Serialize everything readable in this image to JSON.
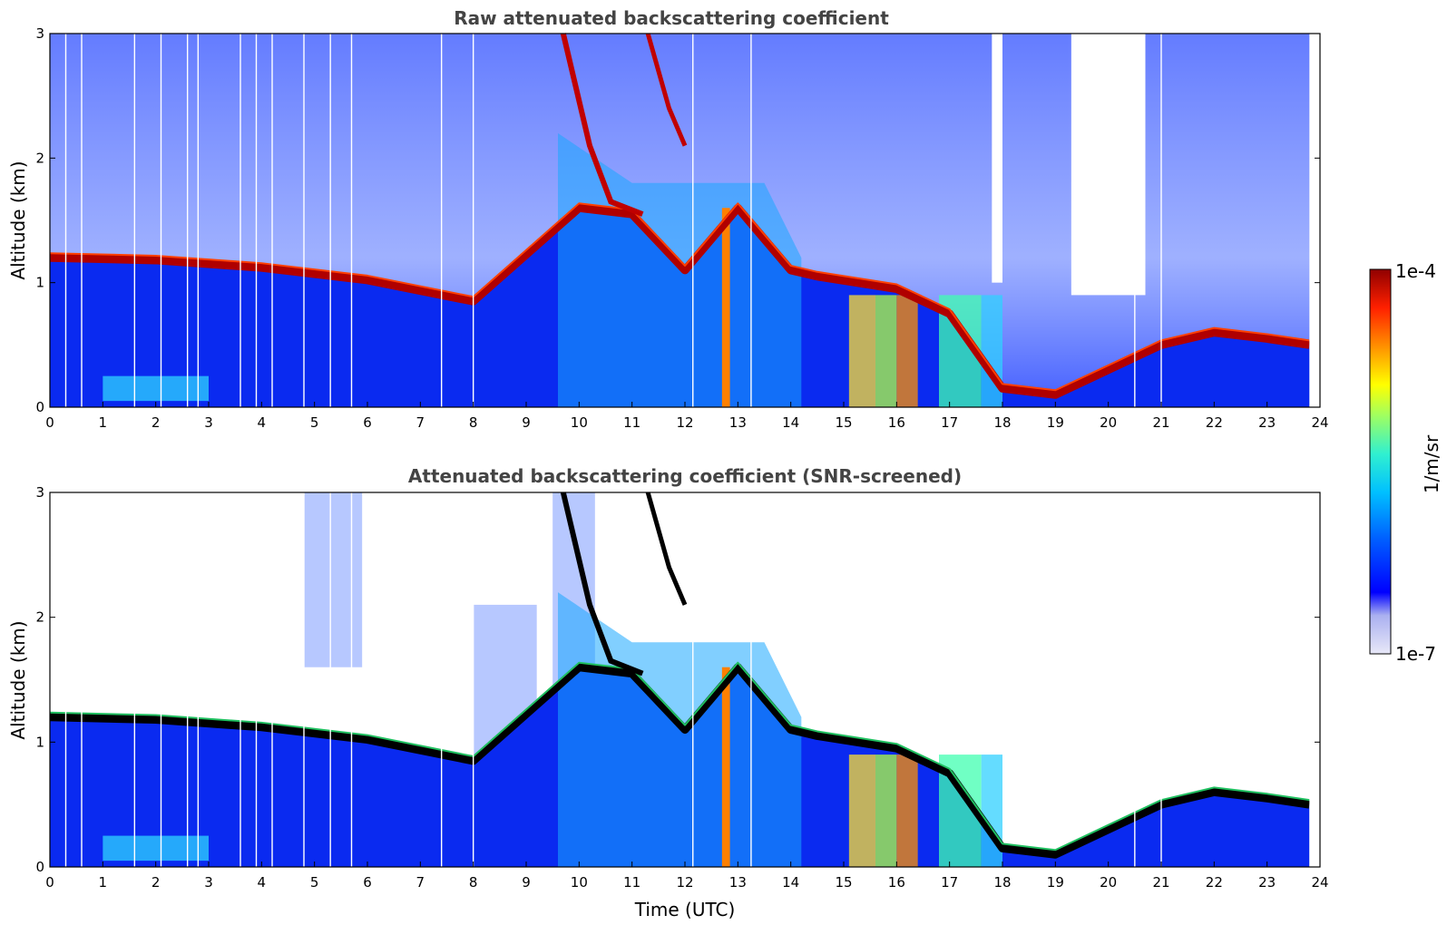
{
  "chart_data": [
    {
      "type": "heatmap",
      "title": "Raw attenuated backscattering coefficient",
      "xlabel": "",
      "ylabel": "Altitude (km)",
      "xlim": [
        0,
        24
      ],
      "ylim": [
        0,
        3
      ],
      "x_ticks": [
        "0",
        "1",
        "2",
        "3",
        "4",
        "5",
        "6",
        "7",
        "8",
        "9",
        "10",
        "11",
        "12",
        "13",
        "14",
        "15",
        "16",
        "17",
        "18",
        "19",
        "20",
        "21",
        "22",
        "23",
        "24"
      ],
      "y_ticks": [
        "0",
        "1",
        "2",
        "3"
      ],
      "layer_top_km": {
        "x": [
          0,
          2,
          4,
          6,
          8,
          10,
          11,
          12,
          13,
          14,
          14.5,
          16,
          17,
          18,
          19,
          20,
          21,
          22,
          23,
          23.8
        ],
        "y": [
          1.2,
          1.18,
          1.12,
          1.02,
          0.85,
          1.6,
          1.55,
          1.1,
          1.6,
          1.1,
          1.05,
          0.95,
          0.75,
          0.15,
          0.1,
          0.3,
          0.5,
          0.6,
          0.55,
          0.5
        ]
      }
    },
    {
      "type": "heatmap",
      "title": "Attenuated backscattering coefficient (SNR-screened)",
      "xlabel": "Time (UTC)",
      "ylabel": "Altitude (km)",
      "xlim": [
        0,
        24
      ],
      "ylim": [
        0,
        3
      ],
      "x_ticks": [
        "0",
        "1",
        "2",
        "3",
        "4",
        "5",
        "6",
        "7",
        "8",
        "9",
        "10",
        "11",
        "12",
        "13",
        "14",
        "15",
        "16",
        "17",
        "18",
        "19",
        "20",
        "21",
        "22",
        "23",
        "24"
      ],
      "y_ticks": [
        "0",
        "1",
        "2",
        "3"
      ],
      "layer_top_km": {
        "x": [
          0,
          2,
          4,
          6,
          8,
          10,
          11,
          12,
          13,
          14,
          14.5,
          16,
          17,
          18,
          19,
          20,
          21,
          22,
          23,
          23.8
        ],
        "y": [
          1.2,
          1.18,
          1.12,
          1.02,
          0.85,
          1.6,
          1.55,
          1.1,
          1.6,
          1.1,
          1.05,
          0.95,
          0.75,
          0.15,
          0.1,
          0.3,
          0.5,
          0.6,
          0.55,
          0.5
        ]
      }
    }
  ],
  "colorbar": {
    "label": "1/m/sr",
    "max_label": "1e-4",
    "min_label": "1e-7",
    "colors": [
      "#e8e8f8",
      "#aab0f0",
      "#0000ff",
      "#0060ff",
      "#00c0ff",
      "#30f0d0",
      "#a0ff60",
      "#ffff00",
      "#ff9000",
      "#ff2000",
      "#900000"
    ]
  }
}
